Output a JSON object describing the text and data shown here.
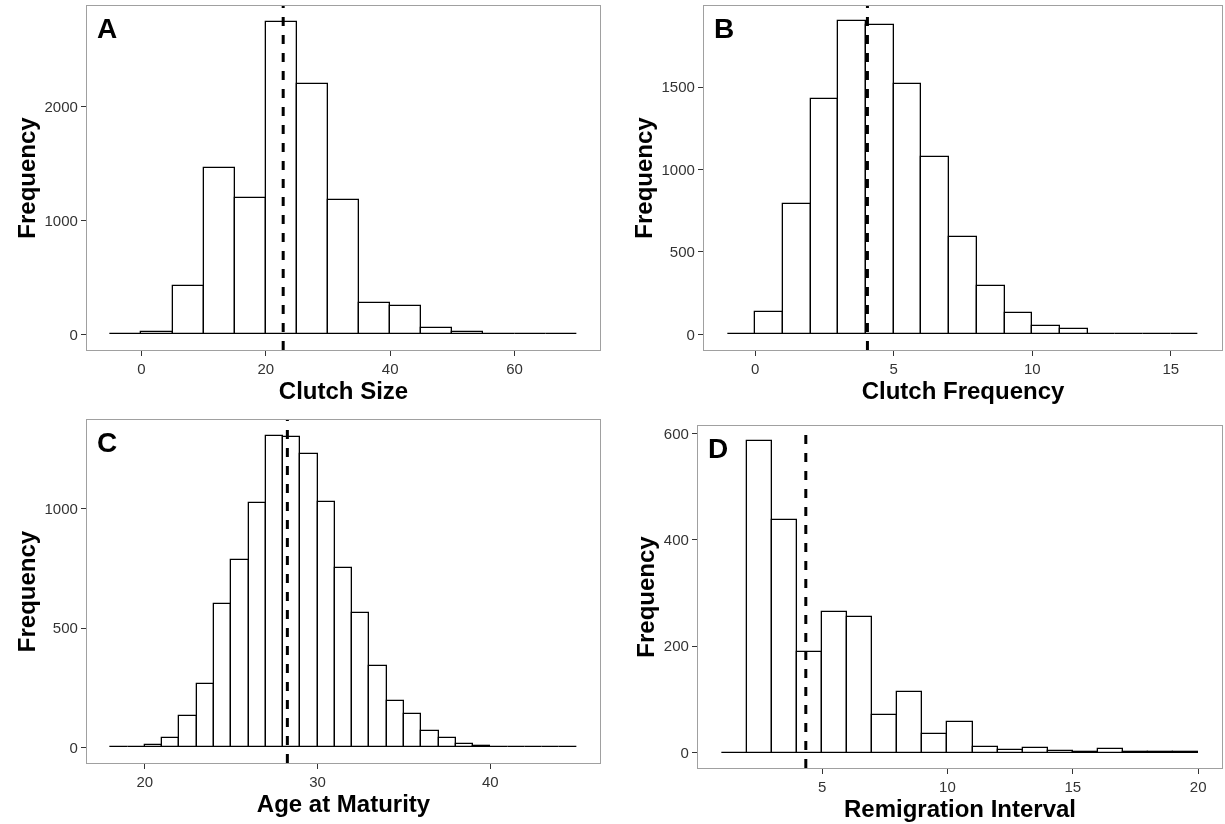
{
  "chart_data": [
    {
      "type": "histogram",
      "title": "A",
      "xlabel": "Clutch Size",
      "ylabel": "Frequency",
      "bins": [
        -5,
        0,
        5,
        10,
        15,
        20,
        25,
        30,
        35,
        40,
        45,
        50,
        55,
        60,
        65,
        70
      ],
      "values": [
        0,
        20,
        430,
        1460,
        1200,
        2750,
        2200,
        1180,
        280,
        250,
        60,
        20,
        0,
        0,
        0
      ],
      "xlim": [
        -8.75,
        73.75
      ],
      "ylim": [
        -137,
        2887
      ],
      "xticks": [
        0,
        20,
        40,
        60
      ],
      "yticks": [
        0,
        1000,
        2000
      ],
      "ref_lines": [
        {
          "axis": "x",
          "value": 22.8,
          "color": "#000000",
          "line_style": "dashed"
        }
      ]
    },
    {
      "type": "histogram",
      "title": "B",
      "xlabel": "Clutch Frequency",
      "ylabel": "Frequency",
      "bins": [
        -1,
        0,
        1,
        2,
        3,
        4,
        5,
        6,
        7,
        8,
        9,
        10,
        11,
        12,
        13,
        14,
        15,
        16
      ],
      "values": [
        0,
        135,
        790,
        1430,
        1900,
        1880,
        1520,
        1075,
        590,
        295,
        130,
        50,
        35,
        5,
        0,
        0,
        0
      ],
      "xlim": [
        -1.85,
        16.85
      ],
      "ylim": [
        -95,
        1993
      ],
      "xticks": [
        0,
        5,
        10,
        15
      ],
      "yticks": [
        0,
        500,
        1000,
        1500
      ],
      "ref_lines": [
        {
          "axis": "x",
          "value": 4.05,
          "color": "#000000",
          "line_style": "dashed"
        }
      ]
    },
    {
      "type": "histogram",
      "title": "C",
      "xlabel": "Age at Maturity",
      "ylabel": "Frequency",
      "bins": [
        18,
        19,
        20,
        21,
        22,
        23,
        24,
        25,
        26,
        27,
        28,
        29,
        30,
        31,
        32,
        33,
        34,
        35,
        36,
        37,
        38,
        39,
        40,
        41,
        42,
        43,
        44,
        45
      ],
      "values": [
        0,
        0,
        10,
        40,
        130,
        265,
        600,
        785,
        1025,
        1305,
        1300,
        1230,
        1030,
        750,
        565,
        340,
        195,
        140,
        70,
        40,
        15,
        5,
        0,
        0,
        0,
        0,
        0
      ],
      "xlim": [
        16.65,
        46.35
      ],
      "ylim": [
        -65,
        1372
      ],
      "xticks": [
        20,
        30,
        40
      ],
      "yticks": [
        0,
        500,
        1000
      ],
      "ref_lines": [
        {
          "axis": "x",
          "value": 28.25,
          "color": "#000000",
          "line_style": "dashed"
        }
      ]
    },
    {
      "type": "histogram",
      "title": "D",
      "xlabel": "Remigration Interval",
      "ylabel": "Frequency",
      "bins": [
        1,
        2,
        3,
        4,
        5,
        6,
        7,
        8,
        9,
        10,
        11,
        12,
        13,
        14,
        15,
        16,
        17,
        18,
        19,
        20
      ],
      "values": [
        0,
        585,
        437,
        190,
        265,
        254,
        71,
        113,
        34,
        57,
        11,
        4,
        9,
        3,
        1,
        6,
        2,
        1,
        1
      ],
      "xlim": [
        0.05,
        20.95
      ],
      "ylim": [
        -29,
        614
      ],
      "xticks": [
        5,
        10,
        15,
        20
      ],
      "yticks": [
        0,
        200,
        400,
        600
      ],
      "ref_lines": [
        {
          "axis": "x",
          "value": 4.35,
          "color": "#000000",
          "line_style": "dashed"
        }
      ]
    }
  ]
}
